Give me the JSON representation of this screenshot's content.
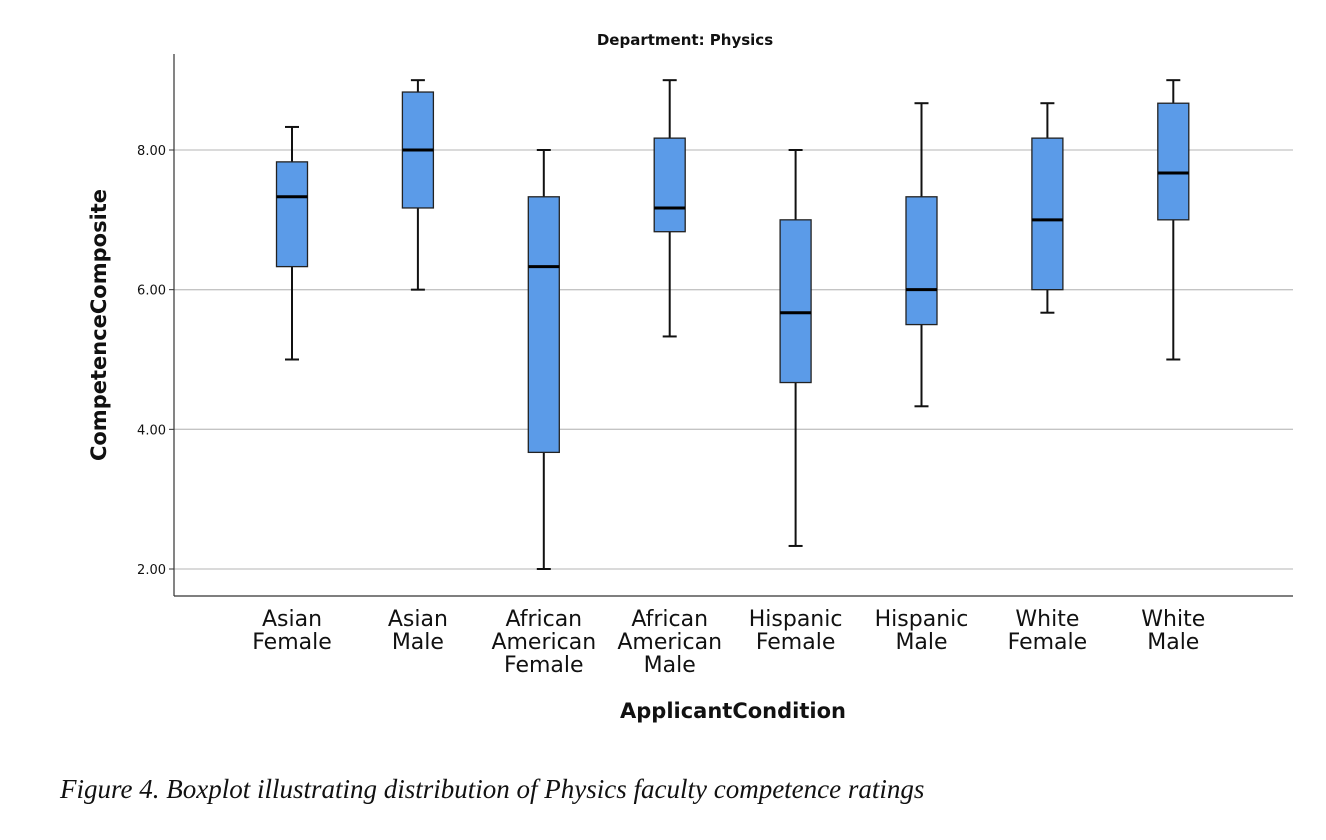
{
  "chart_data": {
    "type": "boxplot",
    "title": "Department: Physics",
    "xlabel": "ApplicantCondition",
    "ylabel": "CompetenceComposite",
    "ylim": [
      1.6,
      9.4
    ],
    "yticks": [
      "2.00",
      "4.00",
      "6.00",
      "8.00"
    ],
    "ytick_values": [
      2,
      4,
      6,
      8
    ],
    "grid": true,
    "box_color": "#5b9be8",
    "categories": [
      {
        "label_lines": [
          "Asian",
          "Female"
        ],
        "min": 5.0,
        "q1": 6.33,
        "median": 7.33,
        "q3": 7.83,
        "max": 8.33
      },
      {
        "label_lines": [
          "Asian",
          "Male"
        ],
        "min": 6.0,
        "q1": 7.17,
        "median": 8.0,
        "q3": 8.83,
        "max": 9.0
      },
      {
        "label_lines": [
          "African",
          "American",
          "Female"
        ],
        "min": 2.0,
        "q1": 3.67,
        "median": 6.33,
        "q3": 7.33,
        "max": 8.0
      },
      {
        "label_lines": [
          "African",
          "American",
          "Male"
        ],
        "min": 5.33,
        "q1": 6.83,
        "median": 7.17,
        "q3": 8.17,
        "max": 9.0
      },
      {
        "label_lines": [
          "Hispanic",
          "Female"
        ],
        "min": 2.33,
        "q1": 4.67,
        "median": 5.67,
        "q3": 7.0,
        "max": 8.0
      },
      {
        "label_lines": [
          "Hispanic",
          "Male"
        ],
        "min": 4.33,
        "q1": 5.5,
        "median": 6.0,
        "q3": 7.33,
        "max": 8.67
      },
      {
        "label_lines": [
          "White",
          "Female"
        ],
        "min": 5.67,
        "q1": 6.0,
        "median": 7.0,
        "q3": 8.17,
        "max": 8.67
      },
      {
        "label_lines": [
          "White",
          "Male"
        ],
        "min": 5.0,
        "q1": 7.0,
        "median": 7.67,
        "q3": 8.67,
        "max": 9.0
      }
    ]
  },
  "caption": "Figure 4. Boxplot illustrating distribution of Physics faculty competence ratings"
}
